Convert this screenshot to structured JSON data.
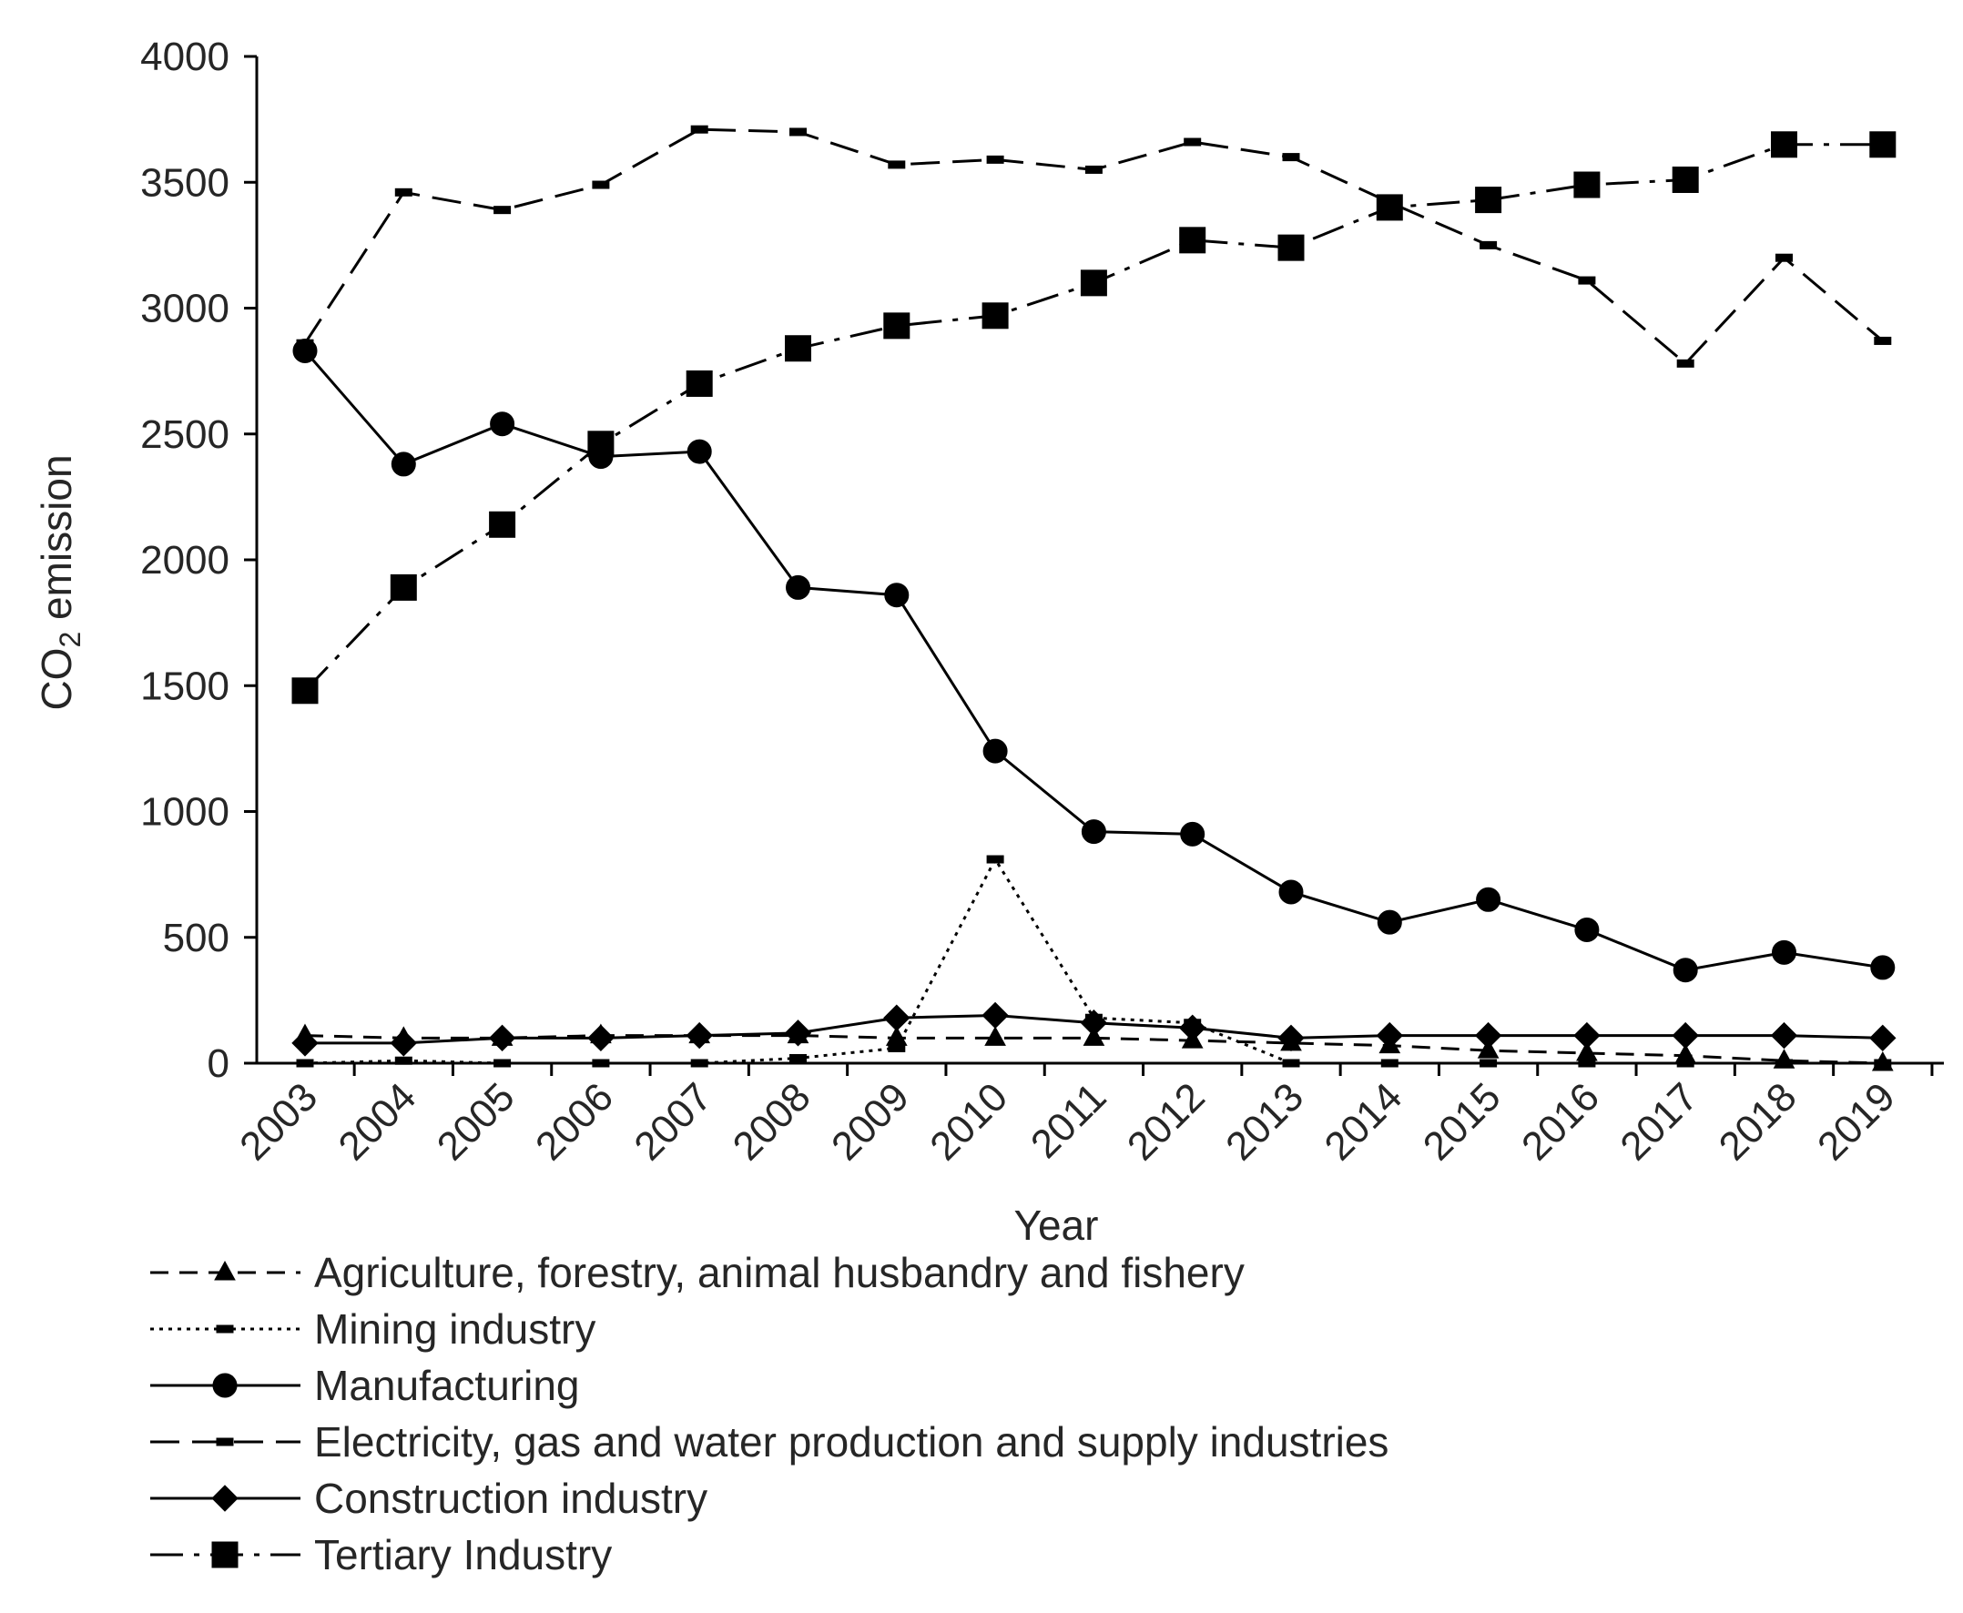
{
  "chart_data": {
    "type": "line",
    "title": "",
    "xlabel": "Year",
    "ylabel_main": "CO",
    "ylabel_sub": "2",
    "ylabel_rest": " emission",
    "ylim": [
      0,
      4000
    ],
    "yticks": [
      "0",
      "500",
      "1000",
      "1500",
      "2000",
      "2500",
      "3000",
      "3500",
      "4000"
    ],
    "ytick_values": [
      0,
      500,
      1000,
      1500,
      2000,
      2500,
      3000,
      3500,
      4000
    ],
    "categories": [
      "2003",
      "2004",
      "2005",
      "2006",
      "2007",
      "2008",
      "2009",
      "2010",
      "2011",
      "2012",
      "2013",
      "2014",
      "2015",
      "2016",
      "2017",
      "2018",
      "2019"
    ],
    "legend_position": "bottom",
    "series": [
      {
        "name": "Agriculture, forestry, animal husbandry and fishery",
        "line_style": "dashed",
        "marker": "triangle",
        "values": [
          110,
          100,
          100,
          110,
          110,
          110,
          100,
          100,
          100,
          90,
          80,
          70,
          50,
          40,
          30,
          10,
          0
        ]
      },
      {
        "name": "Mining industry",
        "line_style": "dotted",
        "marker": "dash",
        "values": [
          0,
          10,
          0,
          0,
          0,
          20,
          60,
          810,
          180,
          160,
          0,
          0,
          0,
          0,
          0,
          0,
          0
        ]
      },
      {
        "name": "Manufacturing",
        "line_style": "solid",
        "marker": "circle",
        "values": [
          2830,
          2380,
          2540,
          2410,
          2430,
          1890,
          1860,
          1240,
          920,
          910,
          680,
          560,
          650,
          530,
          370,
          440,
          380
        ]
      },
      {
        "name": "Electricity, gas and water production and supply industries",
        "line_style": "longdash",
        "marker": "dash",
        "values": [
          2860,
          3460,
          3390,
          3490,
          3710,
          3700,
          3570,
          3590,
          3550,
          3660,
          3600,
          3420,
          3250,
          3110,
          2780,
          3200,
          2870
        ]
      },
      {
        "name": "Construction industry",
        "line_style": "solid",
        "marker": "diamond",
        "values": [
          80,
          80,
          100,
          100,
          110,
          120,
          180,
          190,
          160,
          140,
          100,
          110,
          110,
          110,
          110,
          110,
          100
        ]
      },
      {
        "name": "Tertiary Industry",
        "line_style": "dashdot",
        "marker": "square",
        "values": [
          1480,
          1890,
          2140,
          2460,
          2700,
          2840,
          2930,
          2970,
          3100,
          3270,
          3240,
          3400,
          3430,
          3490,
          3510,
          3650,
          3650
        ]
      }
    ]
  }
}
